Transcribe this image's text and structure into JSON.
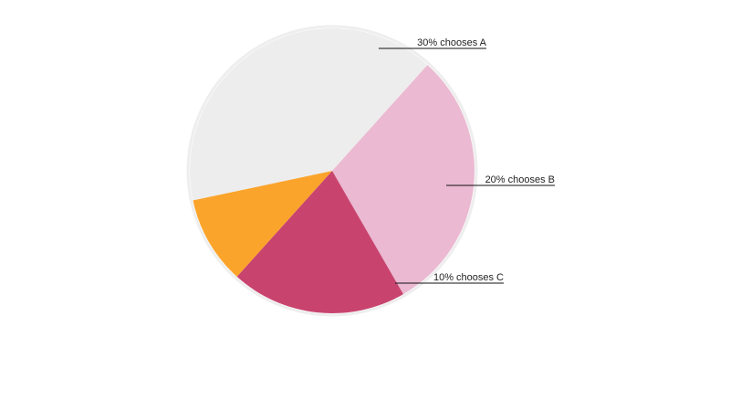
{
  "chart_data": {
    "type": "pie",
    "title": "",
    "slices": [
      {
        "label": "30% chooses A",
        "value": 30,
        "color": "#ebb9d1"
      },
      {
        "label": "20% chooses B",
        "value": 20,
        "color": "#c8446f"
      },
      {
        "label": "10% chooses C",
        "value": 10,
        "color": "#fba42b"
      },
      {
        "label": "",
        "value": 40,
        "color": "#ededed"
      }
    ],
    "start_angle_deg": 312,
    "direction": "clockwise",
    "legend": "none",
    "border_color": "#eeeeee",
    "leader_color": "#111111"
  }
}
